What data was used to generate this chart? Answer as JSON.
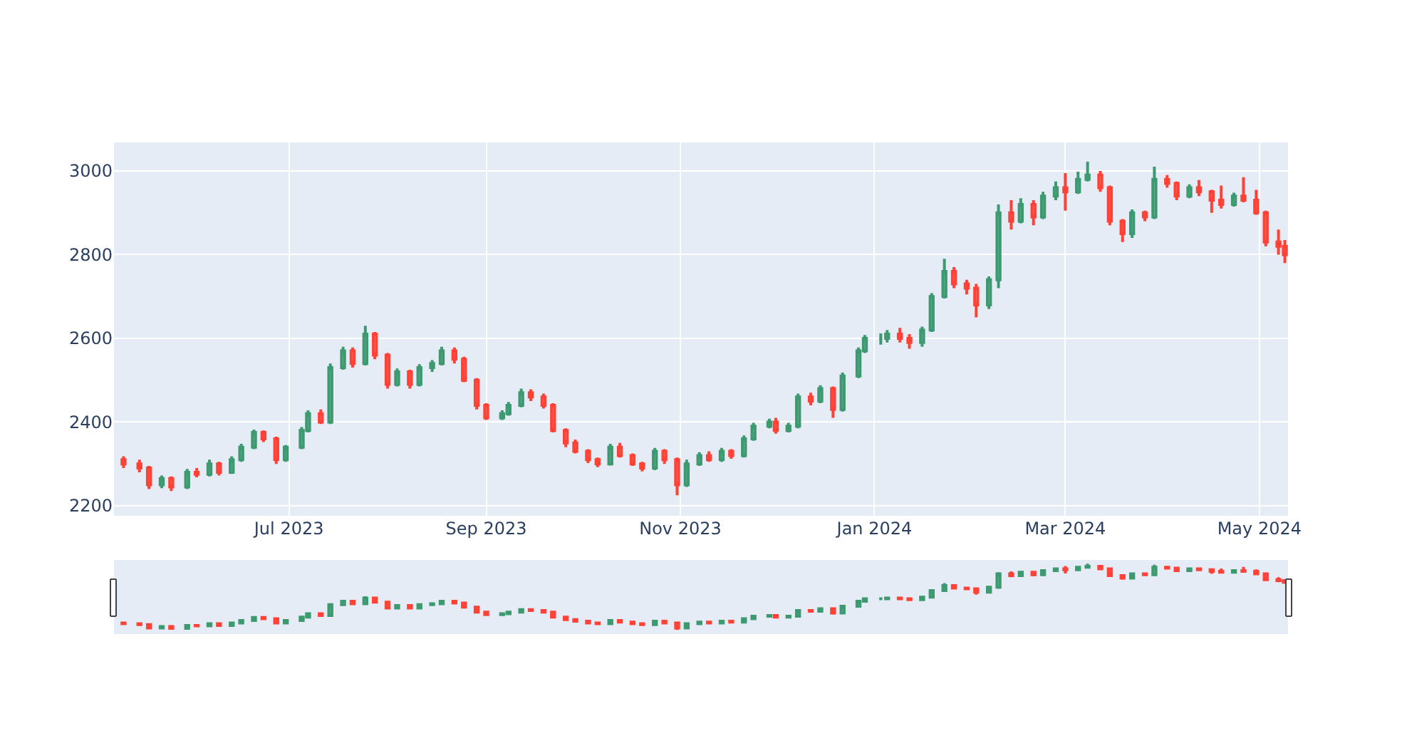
{
  "chart_data": {
    "type": "candlestick",
    "x": [
      "2023-05-10",
      "2023-05-15",
      "2023-05-18",
      "2023-05-22",
      "2023-05-25",
      "2023-05-30",
      "2023-06-02",
      "2023-06-06",
      "2023-06-09",
      "2023-06-13",
      "2023-06-16",
      "2023-06-20",
      "2023-06-23",
      "2023-06-27",
      "2023-06-30",
      "2023-07-05",
      "2023-07-07",
      "2023-07-11",
      "2023-07-14",
      "2023-07-18",
      "2023-07-21",
      "2023-07-25",
      "2023-07-28",
      "2023-08-01",
      "2023-08-04",
      "2023-08-08",
      "2023-08-11",
      "2023-08-15",
      "2023-08-18",
      "2023-08-22",
      "2023-08-25",
      "2023-08-29",
      "2023-09-01",
      "2023-09-06",
      "2023-09-08",
      "2023-09-12",
      "2023-09-15",
      "2023-09-19",
      "2023-09-22",
      "2023-09-26",
      "2023-09-29",
      "2023-10-03",
      "2023-10-06",
      "2023-10-10",
      "2023-10-13",
      "2023-10-17",
      "2023-10-20",
      "2023-10-24",
      "2023-10-27",
      "2023-10-31",
      "2023-11-03",
      "2023-11-07",
      "2023-11-10",
      "2023-11-14",
      "2023-11-17",
      "2023-11-21",
      "2023-11-24",
      "2023-11-29",
      "2023-12-01",
      "2023-12-05",
      "2023-12-08",
      "2023-12-12",
      "2023-12-15",
      "2023-12-19",
      "2023-12-22",
      "2023-12-27",
      "2023-12-29",
      "2024-01-03",
      "2024-01-05",
      "2024-01-09",
      "2024-01-12",
      "2024-01-16",
      "2024-01-19",
      "2024-01-23",
      "2024-01-26",
      "2024-01-30",
      "2024-02-02",
      "2024-02-06",
      "2024-02-09",
      "2024-02-13",
      "2024-02-16",
      "2024-02-20",
      "2024-02-23",
      "2024-02-27",
      "2024-03-01",
      "2024-03-05",
      "2024-03-08",
      "2024-03-12",
      "2024-03-15",
      "2024-03-19",
      "2024-03-22",
      "2024-03-26",
      "2024-03-29",
      "2024-04-02",
      "2024-04-05",
      "2024-04-09",
      "2024-04-12",
      "2024-04-16",
      "2024-04-19",
      "2024-04-23",
      "2024-04-26",
      "2024-04-30",
      "2024-05-03",
      "2024-05-07",
      "2024-05-09"
    ],
    "ohlc": [
      [
        2310,
        2318,
        2290,
        2300
      ],
      [
        2300,
        2310,
        2280,
        2290
      ],
      [
        2290,
        2295,
        2240,
        2250
      ],
      [
        2250,
        2272,
        2242,
        2265
      ],
      [
        2265,
        2270,
        2235,
        2245
      ],
      [
        2245,
        2288,
        2240,
        2280
      ],
      [
        2280,
        2290,
        2268,
        2275
      ],
      [
        2275,
        2310,
        2270,
        2300
      ],
      [
        2300,
        2305,
        2272,
        2280
      ],
      [
        2280,
        2318,
        2276,
        2310
      ],
      [
        2310,
        2348,
        2305,
        2340
      ],
      [
        2340,
        2382,
        2335,
        2375
      ],
      [
        2375,
        2380,
        2352,
        2360
      ],
      [
        2360,
        2365,
        2300,
        2310
      ],
      [
        2310,
        2345,
        2305,
        2340
      ],
      [
        2340,
        2388,
        2335,
        2380
      ],
      [
        2380,
        2428,
        2375,
        2420
      ],
      [
        2420,
        2430,
        2395,
        2400
      ],
      [
        2400,
        2540,
        2395,
        2530
      ],
      [
        2530,
        2580,
        2525,
        2570
      ],
      [
        2570,
        2578,
        2530,
        2540
      ],
      [
        2540,
        2630,
        2535,
        2610
      ],
      [
        2610,
        2615,
        2550,
        2560
      ],
      [
        2560,
        2565,
        2480,
        2490
      ],
      [
        2490,
        2528,
        2485,
        2520
      ],
      [
        2520,
        2525,
        2480,
        2490
      ],
      [
        2490,
        2538,
        2485,
        2530
      ],
      [
        2530,
        2548,
        2520,
        2540
      ],
      [
        2540,
        2580,
        2535,
        2570
      ],
      [
        2570,
        2578,
        2540,
        2550
      ],
      [
        2550,
        2556,
        2495,
        2500
      ],
      [
        2500,
        2505,
        2430,
        2440
      ],
      [
        2440,
        2445,
        2405,
        2410
      ],
      [
        2410,
        2428,
        2405,
        2420
      ],
      [
        2420,
        2448,
        2415,
        2440
      ],
      [
        2440,
        2480,
        2435,
        2470
      ],
      [
        2470,
        2478,
        2450,
        2460
      ],
      [
        2460,
        2468,
        2432,
        2440
      ],
      [
        2440,
        2445,
        2375,
        2380
      ],
      [
        2380,
        2385,
        2340,
        2350
      ],
      [
        2350,
        2358,
        2325,
        2330
      ],
      [
        2330,
        2335,
        2302,
        2310
      ],
      [
        2310,
        2315,
        2292,
        2300
      ],
      [
        2300,
        2348,
        2296,
        2340
      ],
      [
        2340,
        2350,
        2315,
        2320
      ],
      [
        2320,
        2325,
        2295,
        2300
      ],
      [
        2300,
        2305,
        2282,
        2290
      ],
      [
        2290,
        2338,
        2285,
        2330
      ],
      [
        2330,
        2335,
        2300,
        2310
      ],
      [
        2310,
        2315,
        2225,
        2250
      ],
      [
        2250,
        2310,
        2245,
        2300
      ],
      [
        2300,
        2328,
        2295,
        2320
      ],
      [
        2320,
        2330,
        2305,
        2310
      ],
      [
        2310,
        2338,
        2305,
        2330
      ],
      [
        2330,
        2335,
        2312,
        2320
      ],
      [
        2320,
        2368,
        2315,
        2360
      ],
      [
        2360,
        2398,
        2355,
        2390
      ],
      [
        2390,
        2408,
        2385,
        2400
      ],
      [
        2400,
        2410,
        2372,
        2380
      ],
      [
        2380,
        2398,
        2375,
        2390
      ],
      [
        2390,
        2468,
        2385,
        2460
      ],
      [
        2460,
        2470,
        2440,
        2450
      ],
      [
        2450,
        2488,
        2445,
        2480
      ],
      [
        2480,
        2485,
        2410,
        2430
      ],
      [
        2430,
        2518,
        2425,
        2510
      ],
      [
        2510,
        2578,
        2505,
        2570
      ],
      [
        2570,
        2608,
        2565,
        2600
      ],
      [
        2600,
        2612,
        2585,
        2600
      ],
      [
        2600,
        2620,
        2590,
        2610
      ],
      [
        2610,
        2625,
        2590,
        2600
      ],
      [
        2600,
        2610,
        2575,
        2590
      ],
      [
        2590,
        2628,
        2580,
        2620
      ],
      [
        2620,
        2708,
        2615,
        2700
      ],
      [
        2700,
        2790,
        2695,
        2760
      ],
      [
        2760,
        2770,
        2720,
        2730
      ],
      [
        2730,
        2740,
        2705,
        2720
      ],
      [
        2720,
        2730,
        2650,
        2680
      ],
      [
        2680,
        2748,
        2670,
        2740
      ],
      [
        2740,
        2920,
        2720,
        2900
      ],
      [
        2900,
        2930,
        2860,
        2880
      ],
      [
        2880,
        2935,
        2875,
        2920
      ],
      [
        2920,
        2930,
        2870,
        2890
      ],
      [
        2890,
        2950,
        2885,
        2940
      ],
      [
        2940,
        2975,
        2930,
        2960
      ],
      [
        2960,
        2995,
        2905,
        2950
      ],
      [
        2950,
        2998,
        2945,
        2980
      ],
      [
        2980,
        3022,
        2975,
        2990
      ],
      [
        2990,
        3000,
        2950,
        2960
      ],
      [
        2960,
        2965,
        2870,
        2880
      ],
      [
        2880,
        2885,
        2830,
        2850
      ],
      [
        2850,
        2908,
        2840,
        2900
      ],
      [
        2900,
        2905,
        2880,
        2890
      ],
      [
        2890,
        3010,
        2885,
        2980
      ],
      [
        2980,
        2990,
        2960,
        2970
      ],
      [
        2970,
        2975,
        2930,
        2940
      ],
      [
        2940,
        2968,
        2935,
        2960
      ],
      [
        2960,
        2978,
        2940,
        2950
      ],
      [
        2950,
        2955,
        2900,
        2930
      ],
      [
        2930,
        2965,
        2910,
        2920
      ],
      [
        2920,
        2948,
        2915,
        2940
      ],
      [
        2940,
        2985,
        2925,
        2930
      ],
      [
        2930,
        2955,
        2895,
        2900
      ],
      [
        2900,
        2905,
        2820,
        2830
      ],
      [
        2830,
        2860,
        2800,
        2820
      ],
      [
        2820,
        2835,
        2780,
        2800
      ]
    ],
    "xlim": [
      "2023-05-07",
      "2024-05-10"
    ],
    "xticks": [
      {
        "value": "2023-07-01",
        "label": "Jul 2023"
      },
      {
        "value": "2023-09-01",
        "label": "Sep 2023"
      },
      {
        "value": "2023-11-01",
        "label": "Nov 2023"
      },
      {
        "value": "2024-01-01",
        "label": "Jan 2024"
      },
      {
        "value": "2024-03-01",
        "label": "Mar 2024"
      },
      {
        "value": "2024-05-01",
        "label": "May 2024"
      }
    ],
    "ylim": [
      2176,
      3068
    ],
    "yticks": [
      2200,
      2400,
      2600,
      2800,
      3000
    ],
    "grid": true
  }
}
